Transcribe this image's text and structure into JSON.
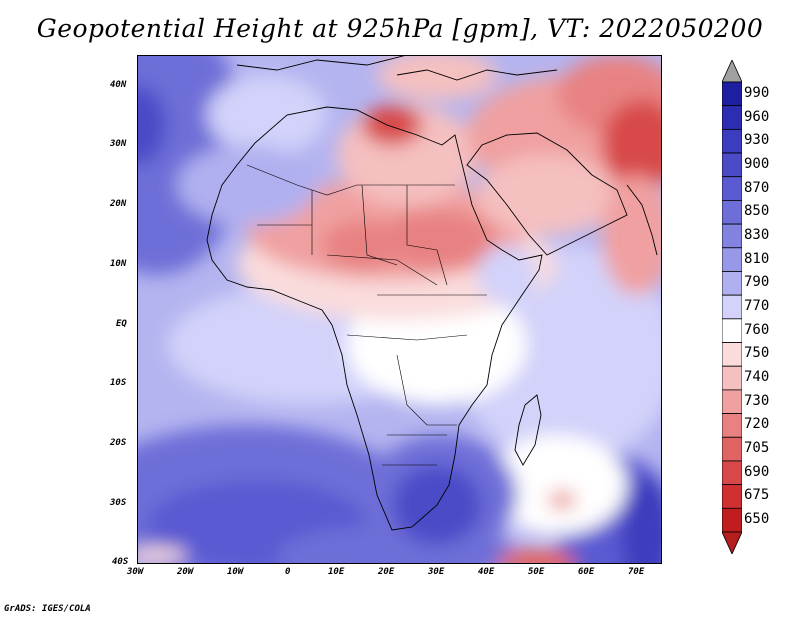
{
  "title": "Geopotential Height at 925hPa [gpm], VT: 2022050200",
  "credit": "GrADS: IGES/COLA",
  "map": {
    "projection": "lat-lon",
    "lon_range": [
      -30,
      75
    ],
    "lat_range": [
      -40,
      45
    ],
    "lon_ticks": [
      "30W",
      "20W",
      "10W",
      "0",
      "10E",
      "20E",
      "30E",
      "40E",
      "50E",
      "60E",
      "70E"
    ],
    "lat_ticks": [
      "40N",
      "30N",
      "20N",
      "10N",
      "EQ",
      "10S",
      "20S",
      "30S",
      "40S"
    ]
  },
  "colorbar": {
    "levels": [
      "990",
      "960",
      "930",
      "900",
      "870",
      "850",
      "830",
      "810",
      "790",
      "770",
      "760",
      "750",
      "740",
      "730",
      "720",
      "705",
      "690",
      "675",
      "650"
    ],
    "colors": [
      "#1e1ea0",
      "#2d2db4",
      "#3c3cbe",
      "#4b4bc8",
      "#5a5ad2",
      "#6e6ed8",
      "#8282e0",
      "#9898e8",
      "#b0b0f0",
      "#d2d2fa",
      "#ffffff",
      "#fadcdc",
      "#f5c0c0",
      "#f0a0a0",
      "#e88282",
      "#e06464",
      "#d84848",
      "#d03030",
      "#c01e1e"
    ],
    "overflow_colors": [
      "#a0a0a0",
      "#b41e1e"
    ]
  }
}
